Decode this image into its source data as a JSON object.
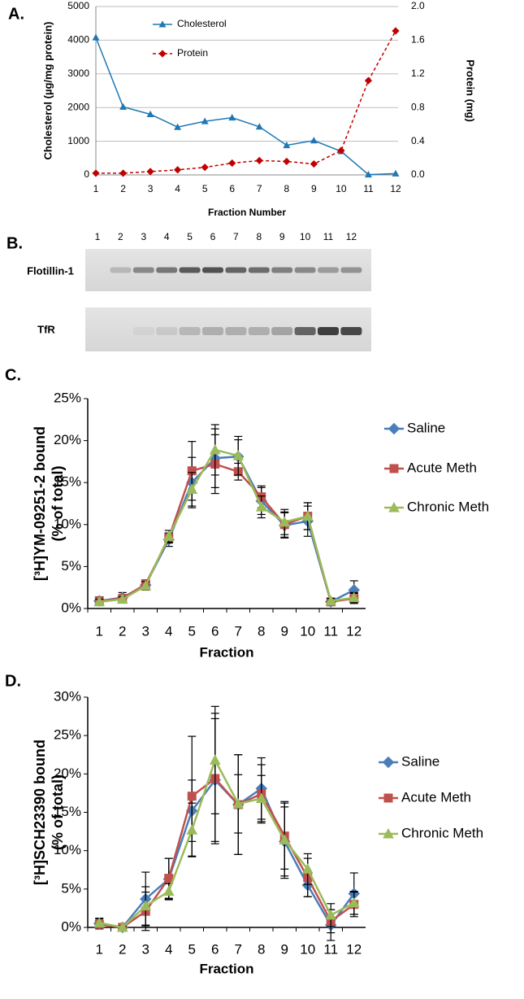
{
  "chart_data": [
    {
      "type": "line",
      "panel_label": "A.",
      "xlabel": "Fraction Number",
      "ylabel": "Cholesterol (µg/mg protein)",
      "y2label": "Protein (mg)",
      "categories": [
        "1",
        "2",
        "3",
        "4",
        "5",
        "6",
        "7",
        "8",
        "9",
        "10",
        "11",
        "12"
      ],
      "ylim": [
        0,
        5000
      ],
      "yticks": [
        0,
        1000,
        2000,
        3000,
        4000,
        5000
      ],
      "y2lim": [
        0,
        2
      ],
      "y2ticks": [
        {
          "value": 0,
          "label": "0.0"
        },
        0.4,
        0.8,
        1.2,
        1.6,
        {
          "value": 2,
          "label": "2.0"
        }
      ],
      "grid": true,
      "series": [
        {
          "name": "Cholesterol",
          "color": "#1f77b4",
          "marker": "triangle",
          "values": [
            4080,
            2020,
            1800,
            1420,
            1590,
            1700,
            1430,
            880,
            1020,
            700,
            10,
            40
          ]
        },
        {
          "name": "Protein",
          "color": "#c00000",
          "marker": "diamond",
          "dashed": true,
          "axis": "y2",
          "values": [
            0.02,
            0.02,
            0.04,
            0.06,
            0.09,
            0.14,
            0.17,
            0.16,
            0.13,
            0.29,
            1.12,
            1.71
          ]
        }
      ]
    },
    {
      "type": "line",
      "panel_label": "C.",
      "xlabel": "Fraction",
      "ylabel": [
        "[³H]YM-09251-2 bound",
        "(% of total)"
      ],
      "categories": [
        "1",
        "2",
        "3",
        "4",
        "5",
        "6",
        "7",
        "8",
        "9",
        "10",
        "11",
        "12"
      ],
      "ylim": [
        0,
        25
      ],
      "yticks": [
        {
          "value": 0,
          "label": "0%"
        },
        {
          "value": 5,
          "label": "5%"
        },
        {
          "value": 10,
          "label": "10%"
        },
        {
          "value": 15,
          "label": "15%"
        },
        {
          "value": 20,
          "label": "20%"
        },
        {
          "value": 25,
          "label": "25%"
        }
      ],
      "grid": false,
      "series": [
        {
          "name": "Saline",
          "color": "#4a7ebb",
          "marker": "diamond",
          "values": [
            0.9,
            1.3,
            2.8,
            8.2,
            15.0,
            17.9,
            18.1,
            12.8,
            9.9,
            10.4,
            0.8,
            2.2
          ],
          "errors": [
            0.5,
            0.6,
            0.6,
            0.8,
            3,
            3.5,
            2,
            1.6,
            1.5,
            1.8,
            0.3,
            1.1
          ]
        },
        {
          "name": "Acute Meth",
          "color": "#c0504d",
          "marker": "square",
          "values": [
            0.9,
            1.2,
            2.9,
            8.4,
            16.4,
            17.2,
            16.3,
            13.3,
            10.0,
            11.0,
            0.8,
            1.2
          ],
          "errors": [
            0.3,
            0.3,
            0.5,
            0.6,
            3.5,
            3.5,
            1,
            1.3,
            1.5,
            1.6,
            0.3,
            0.6
          ]
        },
        {
          "name": "Chronic Meth",
          "color": "#9bbb59",
          "marker": "triangle",
          "values": [
            0.8,
            1.1,
            2.7,
            8.6,
            14.2,
            18.9,
            18.2,
            12.1,
            10.3,
            11.0,
            0.9,
            1.3
          ],
          "errors": [
            0.3,
            0.3,
            0.5,
            0.7,
            2,
            3,
            2.3,
            1.3,
            1.5,
            1.6,
            0.3,
            0.6
          ]
        }
      ]
    },
    {
      "type": "line",
      "panel_label": "D.",
      "xlabel": "Fraction",
      "ylabel": [
        "[³H]SCH23390 bound",
        "(% of total)"
      ],
      "categories": [
        "1",
        "2",
        "3",
        "4",
        "5",
        "6",
        "7",
        "8",
        "9",
        "10",
        "11",
        "12"
      ],
      "ylim": [
        0,
        30
      ],
      "yticks": [
        {
          "value": 0,
          "label": "0%"
        },
        {
          "value": 5,
          "label": "5%"
        },
        {
          "value": 10,
          "label": "10%"
        },
        {
          "value": 15,
          "label": "15%"
        },
        {
          "value": 20,
          "label": "20%"
        },
        {
          "value": 25,
          "label": "25%"
        },
        {
          "value": 30,
          "label": "30%"
        }
      ],
      "grid": false,
      "series": [
        {
          "name": "Saline",
          "color": "#4a7ebb",
          "marker": "diamond",
          "values": [
            0.5,
            0,
            3.7,
            6.3,
            15.2,
            19.2,
            16.0,
            18.1,
            11.2,
            5.5,
            0.3,
            4.4
          ],
          "errors": [
            0.7,
            0.2,
            3.5,
            2.7,
            4,
            8,
            6.5,
            4,
            4.5,
            1.5,
            2,
            2.7
          ]
        },
        {
          "name": "Acute Meth",
          "color": "#c0504d",
          "marker": "square",
          "values": [
            0.4,
            0,
            2.1,
            6.4,
            17.1,
            19.4,
            16.0,
            17.4,
            11.9,
            6.5,
            0.8,
            3.0
          ],
          "errors": [
            0.5,
            0.2,
            2.5,
            2.6,
            7.8,
            8.5,
            6.5,
            3.8,
            4.3,
            2.5,
            1.5,
            1.6
          ]
        },
        {
          "name": "Chronic Meth",
          "color": "#9bbb59",
          "marker": "triangle",
          "values": [
            0.6,
            0,
            2.8,
            4.7,
            12.7,
            21.8,
            16.1,
            16.8,
            11.4,
            7.6,
            1.6,
            3.2
          ],
          "errors": [
            0.5,
            0.2,
            2.5,
            1,
            3.5,
            7,
            3.8,
            3,
            5,
            2,
            1.5,
            1.5
          ]
        }
      ]
    }
  ],
  "blot": {
    "panel_label": "B.",
    "lanes": [
      "1",
      "2",
      "3",
      "4",
      "5",
      "6",
      "7",
      "8",
      "9",
      "10",
      "11",
      "12"
    ],
    "rows": [
      "Flotillin-1",
      "TfR"
    ]
  }
}
